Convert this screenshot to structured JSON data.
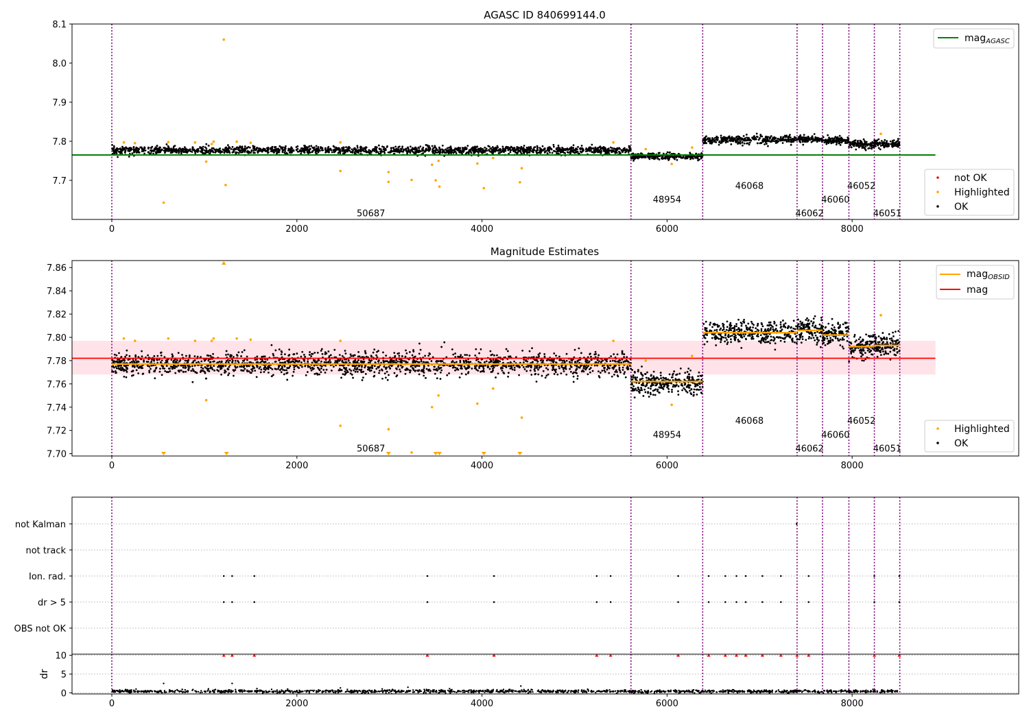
{
  "chart_data": [
    {
      "type": "scatter",
      "title": "AGASC ID 840699144.0",
      "xlabel": "",
      "ylabel": "",
      "xlim": [
        -430,
        9800
      ],
      "ylim": [
        7.6,
        8.1
      ],
      "xticks": [
        0,
        2000,
        4000,
        6000,
        8000
      ],
      "yticks": [
        7.7,
        7.8,
        7.9,
        8.0,
        8.1
      ],
      "grid": false,
      "obsid_boundaries": [
        0,
        5610,
        6385,
        7405,
        7680,
        7965,
        8240,
        8515
      ],
      "obsid_labels": [
        {
          "text": "50687",
          "x": 2800,
          "y": 7.617
        },
        {
          "text": "48954",
          "x": 6000,
          "y": 7.652
        },
        {
          "text": "46068",
          "x": 6890,
          "y": 7.687
        },
        {
          "text": "46062",
          "x": 7540,
          "y": 7.617
        },
        {
          "text": "46060",
          "x": 7820,
          "y": 7.652
        },
        {
          "text": "46052",
          "x": 8100,
          "y": 7.687
        },
        {
          "text": "46051",
          "x": 8380,
          "y": 7.617
        }
      ],
      "series": [
        {
          "name": "mag",
          "sub": "AGASC",
          "kind": "hline",
          "y": 7.765,
          "x": [
            -430,
            8900
          ],
          "color": "#008000"
        },
        {
          "name": "not OK",
          "kind": "points",
          "color": "#ff0000",
          "points": []
        },
        {
          "name": "Highlighted",
          "kind": "points",
          "color": "#ffa500",
          "points": [
            [
              130,
              7.797
            ],
            [
              250,
              7.795
            ],
            [
              560,
              7.643
            ],
            [
              610,
              7.798
            ],
            [
              900,
              7.797
            ],
            [
              1020,
              7.748
            ],
            [
              1080,
              7.793
            ],
            [
              1100,
              7.799
            ],
            [
              1210,
              8.06
            ],
            [
              1230,
              7.688
            ],
            [
              1350,
              7.799
            ],
            [
              1500,
              7.796
            ],
            [
              2470,
              7.724
            ],
            [
              2470,
              7.797
            ],
            [
              2990,
              7.721
            ],
            [
              2990,
              7.696
            ],
            [
              3240,
              7.701
            ],
            [
              3460,
              7.74
            ],
            [
              3500,
              7.7
            ],
            [
              3530,
              7.75
            ],
            [
              3540,
              7.684
            ],
            [
              3950,
              7.743
            ],
            [
              4020,
              7.68
            ],
            [
              4120,
              7.757
            ],
            [
              4410,
              7.695
            ],
            [
              4430,
              7.731
            ],
            [
              5420,
              7.797
            ],
            [
              5770,
              7.78
            ],
            [
              6050,
              7.742
            ],
            [
              6270,
              7.784
            ],
            [
              8310,
              7.819
            ]
          ]
        },
        {
          "name": "OK",
          "kind": "band",
          "color": "#000000",
          "segments": [
            {
              "x0": 0,
              "x1": 5610,
              "center": 7.777,
              "spread": 0.009,
              "n": 1700
            },
            {
              "x0": 5610,
              "x1": 6385,
              "center": 7.761,
              "spread": 0.008,
              "n": 300
            },
            {
              "x0": 6385,
              "x1": 7405,
              "center": 7.804,
              "spread": 0.009,
              "n": 350
            },
            {
              "x0": 7405,
              "x1": 7680,
              "center": 7.806,
              "spread": 0.008,
              "n": 110
            },
            {
              "x0": 7680,
              "x1": 7965,
              "center": 7.802,
              "spread": 0.009,
              "n": 110
            },
            {
              "x0": 7965,
              "x1": 8240,
              "center": 7.792,
              "spread": 0.009,
              "n": 110
            },
            {
              "x0": 8240,
              "x1": 8515,
              "center": 7.793,
              "spread": 0.009,
              "n": 110
            }
          ]
        }
      ],
      "legends": [
        {
          "placement": "upper right",
          "entries": [
            {
              "label": "mag",
              "sub": "AGASC",
              "kind": "line",
              "color": "#008000"
            }
          ]
        },
        {
          "placement": "lower right",
          "entries": [
            {
              "label": "not OK",
              "kind": "dot",
              "color": "#ff0000"
            },
            {
              "label": "Highlighted",
              "kind": "dot",
              "color": "#ffa500"
            },
            {
              "label": "OK",
              "kind": "dot",
              "color": "#000000"
            }
          ]
        }
      ]
    },
    {
      "type": "scatter",
      "title": "Magnitude Estimates",
      "xlabel": "",
      "ylabel": "",
      "xlim": [
        -430,
        9800
      ],
      "ylim": [
        7.698,
        7.866
      ],
      "xticks": [
        0,
        2000,
        4000,
        6000,
        8000
      ],
      "yticks": [
        7.7,
        7.72,
        7.74,
        7.76,
        7.78,
        7.8,
        7.82,
        7.84,
        7.86
      ],
      "grid": false,
      "obsid_boundaries": [
        0,
        5610,
        6385,
        7405,
        7680,
        7965,
        8240,
        8515
      ],
      "obsid_labels": [
        {
          "text": "50687",
          "x": 2800,
          "y": 7.7047
        },
        {
          "text": "48954",
          "x": 6000,
          "y": 7.7167
        },
        {
          "text": "46068",
          "x": 6890,
          "y": 7.7287
        },
        {
          "text": "46062",
          "x": 7540,
          "y": 7.7047
        },
        {
          "text": "46060",
          "x": 7820,
          "y": 7.7167
        },
        {
          "text": "46052",
          "x": 8100,
          "y": 7.7287
        },
        {
          "text": "46051",
          "x": 8380,
          "y": 7.7047
        }
      ],
      "mag_band": {
        "y0": 7.768,
        "y1": 7.797,
        "x": [
          -430,
          8900
        ],
        "color": "#ffc0cb"
      },
      "series": [
        {
          "name": "mag",
          "kind": "hline",
          "y": 7.782,
          "x": [
            -430,
            8900
          ],
          "color": "#ff0000"
        },
        {
          "name": "mag",
          "sub": "OBSID",
          "kind": "steps",
          "color": "#ffa500",
          "steps": [
            [
              0,
              5610,
              7.777
            ],
            [
              5610,
              6385,
              7.762
            ],
            [
              6385,
              7405,
              7.804
            ],
            [
              7405,
              7680,
              7.806
            ],
            [
              7680,
              7965,
              7.802
            ],
            [
              7965,
              8240,
              7.792
            ],
            [
              8240,
              8515,
              7.793
            ]
          ]
        },
        {
          "name": "Highlighted",
          "kind": "points",
          "color": "#ffa500",
          "points": [
            [
              130,
              7.799
            ],
            [
              250,
              7.797
            ],
            [
              610,
              7.799
            ],
            [
              900,
              7.797
            ],
            [
              1020,
              7.746
            ],
            [
              1080,
              7.797
            ],
            [
              1100,
              7.799
            ],
            [
              1350,
              7.799
            ],
            [
              1500,
              7.798
            ],
            [
              2470,
              7.724
            ],
            [
              2470,
              7.797
            ],
            [
              2990,
              7.721
            ],
            [
              3240,
              7.701
            ],
            [
              3460,
              7.74
            ],
            [
              3530,
              7.75
            ],
            [
              3950,
              7.743
            ],
            [
              4120,
              7.756
            ],
            [
              4430,
              7.731
            ],
            [
              5420,
              7.797
            ],
            [
              5770,
              7.78
            ],
            [
              6050,
              7.742
            ],
            [
              6270,
              7.784
            ],
            [
              8310,
              7.819
            ]
          ]
        },
        {
          "name": "Highlighted (off scale)",
          "kind": "markers",
          "color": "#ffa500",
          "points": [
            [
              560,
              "down"
            ],
            [
              1240,
              "down"
            ],
            [
              2990,
              "down"
            ],
            [
              3500,
              "down"
            ],
            [
              3540,
              "down"
            ],
            [
              4020,
              "down"
            ],
            [
              4410,
              "down"
            ],
            [
              1210,
              "up"
            ]
          ]
        },
        {
          "name": "OK",
          "kind": "band",
          "color": "#000000",
          "segments": [
            {
              "x0": 0,
              "x1": 5610,
              "center": 7.777,
              "spread": 0.009,
              "n": 1800
            },
            {
              "x0": 5610,
              "x1": 6385,
              "center": 7.761,
              "spread": 0.009,
              "n": 320
            },
            {
              "x0": 6385,
              "x1": 7405,
              "center": 7.804,
              "spread": 0.009,
              "n": 380
            },
            {
              "x0": 7405,
              "x1": 7680,
              "center": 7.806,
              "spread": 0.009,
              "n": 120
            },
            {
              "x0": 7680,
              "x1": 7965,
              "center": 7.802,
              "spread": 0.009,
              "n": 120
            },
            {
              "x0": 7965,
              "x1": 8240,
              "center": 7.792,
              "spread": 0.009,
              "n": 120
            },
            {
              "x0": 8240,
              "x1": 8515,
              "center": 7.793,
              "spread": 0.009,
              "n": 120
            }
          ]
        }
      ],
      "legends": [
        {
          "placement": "upper right",
          "entries": [
            {
              "label": "mag",
              "sub": "OBSID",
              "kind": "line",
              "color": "#ffa500"
            },
            {
              "label": "mag",
              "kind": "line",
              "color": "#ff0000"
            }
          ]
        },
        {
          "placement": "lower right",
          "entries": [
            {
              "label": "Highlighted",
              "kind": "dot",
              "color": "#ffa500"
            },
            {
              "label": "OK",
              "kind": "dot",
              "color": "#000000"
            }
          ]
        }
      ]
    },
    {
      "type": "scatter",
      "title": "",
      "xlabel": "",
      "ylabel": "",
      "xlim": [
        -430,
        9800
      ],
      "categories": [
        "OBS not OK",
        "dr > 5",
        "Ion. rad.",
        "not track",
        "not Kalman"
      ],
      "grid": true,
      "obsid_boundaries": [
        0,
        5610,
        6385,
        7405,
        7680,
        7965,
        8240,
        8515
      ],
      "series": [
        {
          "name": "Ion. rad.",
          "category": "Ion. rad.",
          "color": "#000000",
          "x": [
            1210,
            1300,
            1540,
            3410,
            4130,
            5240,
            5390,
            6120,
            6450,
            6630,
            6750,
            6850,
            7030,
            7230,
            7530,
            8240,
            8510
          ]
        },
        {
          "name": "dr > 5",
          "category": "dr > 5",
          "color": "#000000",
          "x": [
            1210,
            1300,
            1540,
            3410,
            4130,
            5240,
            5390,
            6120,
            6450,
            6630,
            6750,
            6850,
            7030,
            7230,
            7530,
            8240,
            8510
          ]
        },
        {
          "name": "not Kalman",
          "category": "not Kalman",
          "color": "#000000",
          "x": [
            7400
          ]
        }
      ]
    },
    {
      "type": "scatter",
      "title": "",
      "xlabel": "",
      "ylabel": "dr",
      "xlim": [
        -430,
        9800
      ],
      "ylim": [
        -0.3,
        10.3
      ],
      "xticks": [
        0,
        2000,
        4000,
        6000,
        8000
      ],
      "yticks": [
        0,
        5,
        10
      ],
      "grid": true,
      "obsid_boundaries": [
        0,
        5610,
        6385,
        7405,
        7680,
        7965,
        8240,
        8515
      ],
      "series": [
        {
          "name": "dr",
          "kind": "band",
          "color": "#000000",
          "center": 0.4,
          "spread": 0.2,
          "n": 1400,
          "x0": 0,
          "x1": 8515
        },
        {
          "name": "dr (sparse)",
          "kind": "points",
          "color": "#000000",
          "points": [
            [
              560,
              2.5
            ],
            [
              1300,
              2.5
            ],
            [
              2470,
              1.3
            ],
            [
              3200,
              1.5
            ],
            [
              4420,
              1.8
            ],
            [
              760,
              0.9
            ],
            [
              1900,
              1.0
            ],
            [
              3650,
              1.1
            ]
          ]
        },
        {
          "name": "dr clipped",
          "kind": "markers",
          "color": "#ff0000",
          "x": [
            1210,
            1300,
            1540,
            3410,
            4130,
            5240,
            5390,
            6120,
            6450,
            6630,
            6750,
            6850,
            7030,
            7230,
            7405,
            7530,
            8240,
            8510
          ]
        }
      ]
    }
  ]
}
